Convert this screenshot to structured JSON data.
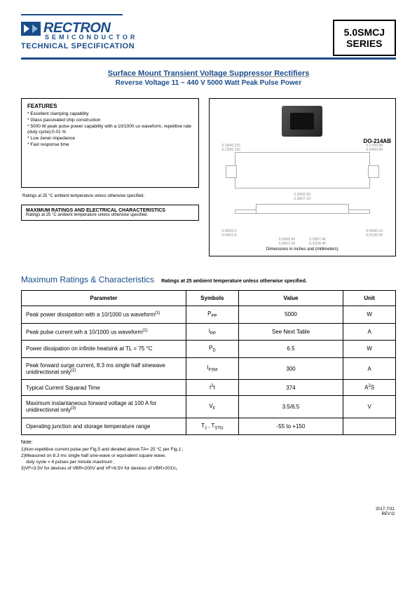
{
  "header": {
    "logo_text": "RECTRON",
    "logo_sub": "SEMICONDUCTOR",
    "tech_spec": "TECHNICAL SPECIFICATION",
    "series_line1": "5.0SMCJ",
    "series_line2": "SERIES"
  },
  "title": {
    "line1": "Surface Mount Transient Voltage Suppressor Rectifiers",
    "line2": "Reverse Voltage 11 ~ 440 V  5000 Watt Peak Pulse Power"
  },
  "features": {
    "heading": "FEATURES",
    "items": [
      "Excellent clamping capability",
      "Glass passivated chip construction",
      "5000 W peak pulse power capability with a 10/1000 us waveform, repetitive rate (duty cycle):0.01 %",
      "Low zener impedance",
      "Fast response time"
    ],
    "ratings_note": "Ratings at 25 °C ambient temperature unless otherwise specified.",
    "max_ratings_heading": "MAXIMUM RATINGS AND ELECTRICAL CHARACTERISTICS",
    "max_ratings_note": "Ratings at 25 °C ambient temperature unless otherwise specified."
  },
  "package": {
    "label": "DO-214AB",
    "dim_caption": "Dimensions in inches and (millimeters)",
    "dims": {
      "left_h": "0.160/0.215\n0.125/0.220",
      "right_h": "0.170/0.88\n0.245/0.60",
      "w_top": "0.256/0.50\n0.306/7.10",
      "side_left": "0.083/2.0\n0.096/2.8",
      "side_right": "0.006/0.10\n0.012/0.30",
      "bottom1": "0.030/0.90\n0.060/1.60",
      "bottom2": "0.285/7.40\n0.315/8.40"
    }
  },
  "section": {
    "title": "Maximum Ratings & Characteristics",
    "subtitle": "Ratings at 25   ambient temperature unless otherwise specified."
  },
  "table": {
    "headers": [
      "Parameter",
      "Symbols",
      "Value",
      "Unit"
    ],
    "rows": [
      {
        "param": "Peak power dissipation with a 10/1000 us waveform",
        "note": "(1)",
        "sym": "P",
        "sub": "PP",
        "val": "5000",
        "unit": "W"
      },
      {
        "param": "Peak pulse current wih a 10/1000 us waveform",
        "note": "(1)",
        "sym": "I",
        "sub": "PP",
        "val": "See Next Table",
        "unit": "A"
      },
      {
        "param": "Power dissipation on infinite heatsink at TL = 75 °C",
        "note": "",
        "sym": "P",
        "sub": "D",
        "val": "6.5",
        "unit": "W"
      },
      {
        "param": "Peak forward surge current, 8.3 ms single half sinewave unidirectional only",
        "note": "(2)",
        "sym": "I",
        "sub": "FSM",
        "val": "300",
        "unit": "A"
      },
      {
        "param": "Typical Current Squarad Time",
        "note": "",
        "sym": "I",
        "sup": "2",
        "sym2": "t",
        "val": "374",
        "unit": "A",
        "usup": "2",
        "unit2": "S"
      },
      {
        "param": "Maximum instantaneous forward voltage at 100 A for unidirectional only",
        "note": "(3)",
        "sym": "V",
        "sub": "F",
        "val": "3.5/6.5",
        "unit": "V"
      },
      {
        "param": "Operating junction and storage temperature range",
        "note": "",
        "sym": "T",
        "sub": "J",
        "sym2": " , T",
        "sub2": "STG",
        "val": "-55 to +150",
        "unit": ""
      }
    ]
  },
  "notes": {
    "heading": "Note:",
    "items": [
      "1)Non-repetitive current pulse  per Fig.5 and derated above TA= 25 °C per Fig.1 ;",
      "2)Measured on 8.3 ms single half sine-wave or equivalent square wave,",
      "    duty cycle = 4 pulses per minute maximum ;",
      "3)VF<3.5V for devices of VBR<200V and VF<6.5V for devices of VBR>201V。"
    ]
  },
  "footer": {
    "date": "2017-7/31",
    "rev": "REV:O"
  },
  "colors": {
    "brand": "#1a4c8a",
    "border": "#000000",
    "dim_gray": "#888888"
  }
}
